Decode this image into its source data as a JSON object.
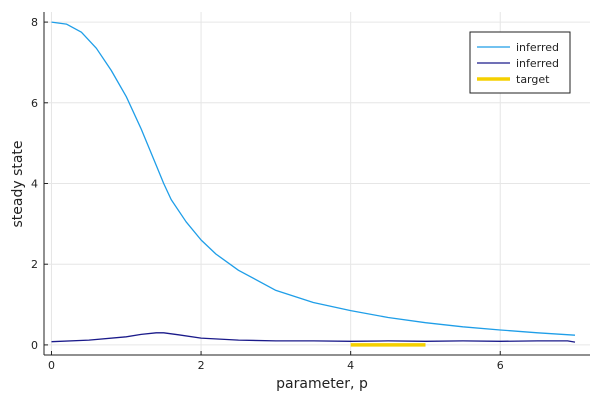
{
  "chart_data": {
    "type": "line",
    "title": "",
    "xlabel": "parameter, p",
    "ylabel": "steady state",
    "xlim": [
      -0.1,
      7.2
    ],
    "ylim": [
      -0.25,
      8.25
    ],
    "xticks": [
      0,
      2,
      4,
      6
    ],
    "yticks": [
      0,
      2,
      4,
      6,
      8
    ],
    "xtick_labels": [
      "0",
      "2",
      "4",
      "6"
    ],
    "ytick_labels": [
      "0",
      "2",
      "4",
      "6",
      "8"
    ],
    "grid": true,
    "legend_position": "top-right",
    "series": [
      {
        "name": "inferred",
        "color": "#1f9ee8",
        "x": [
          0,
          0.2,
          0.4,
          0.6,
          0.8,
          1.0,
          1.2,
          1.4,
          1.5,
          1.6,
          1.8,
          2.0,
          2.2,
          2.5,
          3.0,
          3.5,
          4.0,
          4.5,
          5.0,
          5.5,
          6.0,
          6.5,
          7.0
        ],
        "y": [
          8.0,
          7.95,
          7.75,
          7.35,
          6.8,
          6.15,
          5.35,
          4.45,
          4.0,
          3.6,
          3.05,
          2.6,
          2.25,
          1.85,
          1.35,
          1.05,
          0.85,
          0.68,
          0.55,
          0.45,
          0.37,
          0.3,
          0.24
        ]
      },
      {
        "name": "inferred",
        "color": "#1a1a8a",
        "x": [
          0,
          0.5,
          1.0,
          1.2,
          1.4,
          1.5,
          1.7,
          2.0,
          2.5,
          3.0,
          3.5,
          4.0,
          4.5,
          5.0,
          5.5,
          6.0,
          6.5,
          6.9,
          7.0
        ],
        "y": [
          0.08,
          0.12,
          0.2,
          0.26,
          0.3,
          0.3,
          0.25,
          0.17,
          0.12,
          0.1,
          0.1,
          0.09,
          0.1,
          0.09,
          0.1,
          0.09,
          0.1,
          0.1,
          0.07
        ]
      },
      {
        "name": "target",
        "color": "#f5d000",
        "x": [
          4.0,
          5.0
        ],
        "y": [
          0.0,
          0.0
        ]
      }
    ]
  }
}
